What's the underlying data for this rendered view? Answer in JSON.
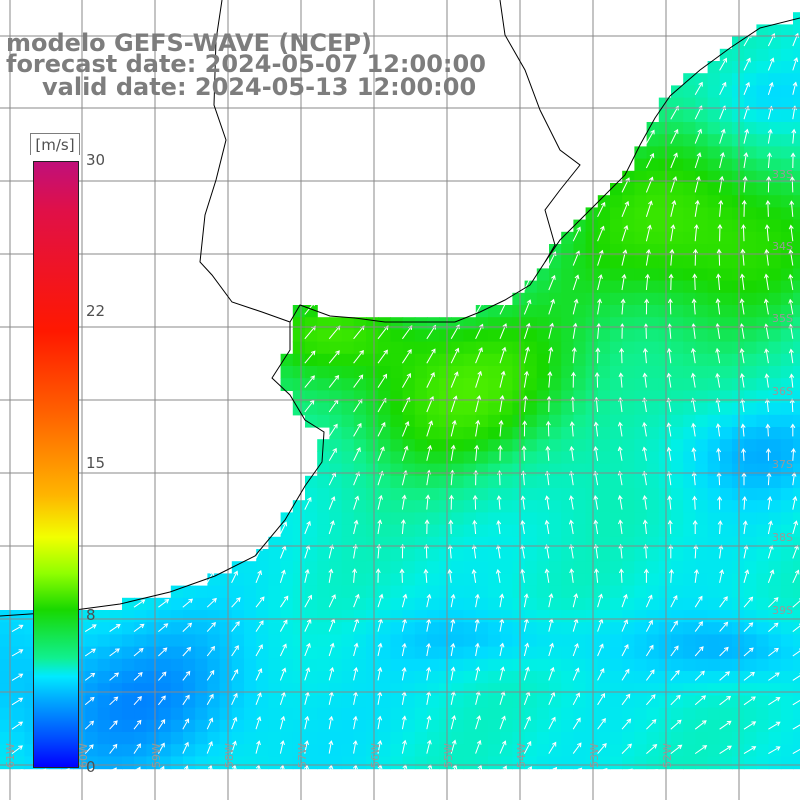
{
  "title": {
    "model": "modelo GEFS-WAVE (NCEP)",
    "forecast": "forecast date: 2024-05-07 12:00:00",
    "valid": "valid date: 2024-05-13 12:00:00"
  },
  "colorbar": {
    "unit": "[m/s]",
    "ticks": [
      "30",
      "22",
      "15",
      "8",
      "0"
    ],
    "stops": [
      "#c0107a",
      "#ff1800",
      "#ff6400",
      "#f2ff00",
      "#18d800",
      "#00eaff",
      "#0050ff",
      "#0000ff"
    ]
  },
  "lat_labels": [
    "33S",
    "34S",
    "35S",
    "36S",
    "37S",
    "38S",
    "39S"
  ],
  "lon_labels": [
    "61W",
    "60W",
    "59W",
    "58W",
    "57W",
    "56W",
    "55W",
    "54W",
    "53W",
    "52W"
  ],
  "colors": {
    "land": "#ffffff",
    "coast": "#000000",
    "grid": "#888888",
    "arrow": "#ffffff",
    "title": "#7d7d7d"
  }
}
